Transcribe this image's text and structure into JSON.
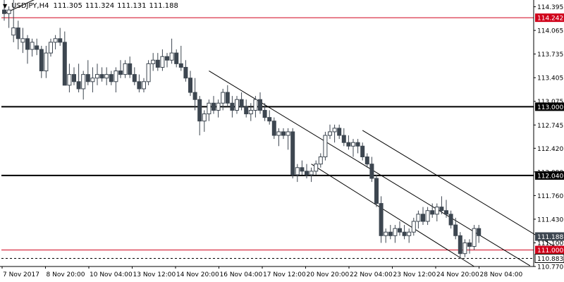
{
  "header": {
    "menu_icon": "triangle-down-icon",
    "symbol": "USDJPY,H4",
    "open": "111.305",
    "high": "111.324",
    "low": "111.131",
    "close": "111.188"
  },
  "colors": {
    "candle": "#3d4650",
    "red_line": "#d0021b",
    "black_line": "#000000",
    "channel": "#000000",
    "price_tag_dark": "#3d4650",
    "price_tag_red": "#d0021b"
  },
  "chart_data": {
    "type": "candlestick",
    "symbol": "USDJPY",
    "timeframe": "H4",
    "ylim": [
      110.77,
      114.45
    ],
    "y_ticks": [
      "114.395",
      "114.065",
      "113.735",
      "113.405",
      "113.075",
      "112.745",
      "112.420",
      "112.090",
      "111.760",
      "111.430",
      "111.100",
      "110.770"
    ],
    "x_tick_labels": [
      "7 Nov 2017",
      "8 Nov 20:00",
      "10 Nov 04:00",
      "13 Nov 12:00",
      "14 Nov 20:00",
      "16 Nov 04:00",
      "17 Nov 12:00",
      "20 Nov 20:00",
      "22 Nov 04:00",
      "23 Nov 12:00",
      "24 Nov 20:00",
      "28 Nov 04:00"
    ],
    "horizontal_levels": [
      {
        "value": 114.242,
        "label": "114.242",
        "color": "red"
      },
      {
        "value": 113.0,
        "label": "113.000",
        "color": "black"
      },
      {
        "value": 112.04,
        "label": "112.040",
        "color": "black"
      },
      {
        "value": 111.0,
        "label": "111.000",
        "color": "red"
      }
    ],
    "dashed_levels": [
      {
        "value": 110.883,
        "label": "110.883"
      }
    ],
    "current_price": {
      "value": 111.188,
      "label": "111.188"
    },
    "trend_lines": [
      {
        "from": [
          0,
          114.3
        ],
        "to": [
          10,
          114.6
        ]
      },
      {
        "from": [
          44,
          113.5
        ],
        "to": [
          113,
          110.78
        ]
      },
      {
        "from": [
          77,
          112.67
        ],
        "to": [
          131,
          110.55
        ]
      },
      {
        "from": [
          66,
          112.2
        ],
        "to": [
          101,
          110.77
        ]
      }
    ],
    "candles": [
      [
        114.35,
        114.5,
        114.2,
        114.3
      ],
      [
        114.3,
        114.4,
        114.1,
        114.35
      ],
      [
        114.0,
        114.6,
        113.9,
        114.1
      ],
      [
        114.1,
        114.2,
        113.8,
        113.95
      ],
      [
        113.9,
        114.1,
        113.75,
        113.95
      ],
      [
        113.95,
        114.0,
        113.6,
        113.8
      ],
      [
        113.8,
        113.95,
        113.7,
        113.9
      ],
      [
        113.85,
        113.95,
        113.72,
        113.8
      ],
      [
        113.8,
        113.85,
        113.4,
        113.5
      ],
      [
        113.5,
        113.85,
        113.4,
        113.75
      ],
      [
        113.75,
        113.95,
        113.7,
        113.9
      ],
      [
        113.9,
        114.0,
        113.8,
        113.95
      ],
      [
        113.95,
        114.1,
        113.85,
        113.9
      ],
      [
        113.9,
        114.05,
        113.3,
        113.3
      ],
      [
        113.3,
        113.6,
        113.2,
        113.45
      ],
      [
        113.45,
        113.55,
        113.3,
        113.35
      ],
      [
        113.35,
        113.6,
        113.2,
        113.25
      ],
      [
        113.25,
        113.5,
        113.1,
        113.45
      ],
      [
        113.45,
        113.65,
        113.3,
        113.35
      ],
      [
        113.35,
        113.55,
        113.2,
        113.4
      ],
      [
        113.4,
        113.6,
        113.3,
        113.45
      ],
      [
        113.45,
        113.55,
        113.35,
        113.4
      ],
      [
        113.4,
        113.55,
        113.3,
        113.45
      ],
      [
        113.45,
        113.5,
        113.3,
        113.35
      ],
      [
        113.35,
        113.55,
        113.2,
        113.5
      ],
      [
        113.5,
        113.65,
        113.4,
        113.45
      ],
      [
        113.45,
        113.65,
        113.4,
        113.6
      ],
      [
        113.6,
        113.7,
        113.4,
        113.45
      ],
      [
        113.45,
        113.55,
        113.3,
        113.35
      ],
      [
        113.35,
        113.45,
        113.2,
        113.25
      ],
      [
        113.25,
        113.4,
        113.2,
        113.35
      ],
      [
        113.35,
        113.65,
        113.3,
        113.6
      ],
      [
        113.6,
        113.75,
        113.5,
        113.65
      ],
      [
        113.65,
        113.75,
        113.5,
        113.55
      ],
      [
        113.55,
        113.8,
        113.5,
        113.7
      ],
      [
        113.7,
        113.75,
        113.55,
        113.65
      ],
      [
        113.65,
        113.95,
        113.6,
        113.75
      ],
      [
        113.75,
        113.8,
        113.55,
        113.6
      ],
      [
        113.6,
        113.85,
        113.5,
        113.55
      ],
      [
        113.55,
        113.65,
        113.35,
        113.4
      ],
      [
        113.4,
        113.5,
        113.15,
        113.2
      ],
      [
        113.2,
        113.4,
        112.95,
        113.1
      ],
      [
        113.1,
        113.15,
        112.6,
        112.8
      ],
      [
        112.8,
        112.95,
        112.65,
        112.9
      ],
      [
        112.9,
        113.1,
        112.8,
        113.05
      ],
      [
        113.05,
        113.15,
        112.9,
        112.95
      ],
      [
        112.95,
        113.1,
        112.85,
        113.05
      ],
      [
        113.05,
        113.25,
        112.95,
        113.2
      ],
      [
        113.2,
        113.3,
        113.0,
        113.05
      ],
      [
        113.05,
        113.15,
        112.85,
        112.95
      ],
      [
        112.95,
        113.15,
        112.9,
        113.1
      ],
      [
        113.1,
        113.2,
        112.95,
        113.0
      ],
      [
        113.0,
        113.1,
        112.85,
        112.9
      ],
      [
        112.9,
        113.05,
        112.8,
        112.95
      ],
      [
        112.95,
        113.15,
        112.85,
        113.1
      ],
      [
        113.1,
        113.2,
        112.9,
        112.95
      ],
      [
        112.95,
        113.05,
        112.8,
        112.85
      ],
      [
        112.85,
        112.95,
        112.75,
        112.8
      ],
      [
        112.8,
        112.85,
        112.55,
        112.6
      ],
      [
        112.6,
        112.7,
        112.45,
        112.65
      ],
      [
        112.65,
        112.7,
        112.55,
        112.6
      ],
      [
        112.6,
        112.7,
        112.4,
        112.65
      ],
      [
        112.65,
        112.7,
        112.0,
        112.05
      ],
      [
        112.05,
        112.2,
        111.95,
        112.15
      ],
      [
        112.15,
        112.25,
        112.05,
        112.1
      ],
      [
        112.1,
        112.2,
        112.0,
        112.05
      ],
      [
        112.05,
        112.15,
        111.95,
        112.1
      ],
      [
        112.1,
        112.25,
        112.05,
        112.2
      ],
      [
        112.2,
        112.35,
        112.15,
        112.3
      ],
      [
        112.3,
        112.65,
        112.25,
        112.6
      ],
      [
        112.6,
        112.75,
        112.55,
        112.65
      ],
      [
        112.65,
        112.75,
        112.5,
        112.7
      ],
      [
        112.7,
        112.75,
        112.55,
        112.6
      ],
      [
        112.6,
        112.7,
        112.45,
        112.5
      ],
      [
        112.5,
        112.6,
        112.4,
        112.45
      ],
      [
        112.45,
        112.55,
        112.3,
        112.5
      ],
      [
        112.5,
        112.55,
        112.35,
        112.45
      ],
      [
        112.45,
        112.5,
        112.25,
        112.3
      ],
      [
        112.3,
        112.35,
        112.15,
        112.2
      ],
      [
        112.2,
        112.3,
        111.95,
        112.0
      ],
      [
        112.0,
        112.05,
        111.6,
        111.65
      ],
      [
        111.65,
        111.75,
        111.1,
        111.2
      ],
      [
        111.2,
        111.3,
        111.1,
        111.25
      ],
      [
        111.25,
        111.35,
        111.15,
        111.2
      ],
      [
        111.2,
        111.35,
        111.1,
        111.3
      ],
      [
        111.3,
        111.4,
        111.2,
        111.25
      ],
      [
        111.25,
        111.35,
        111.15,
        111.2
      ],
      [
        111.2,
        111.3,
        111.1,
        111.25
      ],
      [
        111.25,
        111.45,
        111.2,
        111.4
      ],
      [
        111.4,
        111.55,
        111.3,
        111.5
      ],
      [
        111.5,
        111.6,
        111.35,
        111.4
      ],
      [
        111.4,
        111.6,
        111.35,
        111.55
      ],
      [
        111.55,
        111.65,
        111.45,
        111.5
      ],
      [
        111.5,
        111.65,
        111.4,
        111.6
      ],
      [
        111.6,
        111.75,
        111.5,
        111.55
      ],
      [
        111.55,
        111.7,
        111.45,
        111.5
      ],
      [
        111.5,
        111.55,
        111.3,
        111.35
      ],
      [
        111.35,
        111.45,
        111.15,
        111.2
      ],
      [
        111.2,
        111.25,
        110.88,
        110.95
      ],
      [
        110.95,
        111.15,
        110.9,
        111.1
      ],
      [
        111.1,
        111.15,
        110.95,
        111.05
      ],
      [
        111.05,
        111.35,
        111.0,
        111.3
      ],
      [
        111.3,
        111.35,
        111.1,
        111.2
      ]
    ]
  }
}
